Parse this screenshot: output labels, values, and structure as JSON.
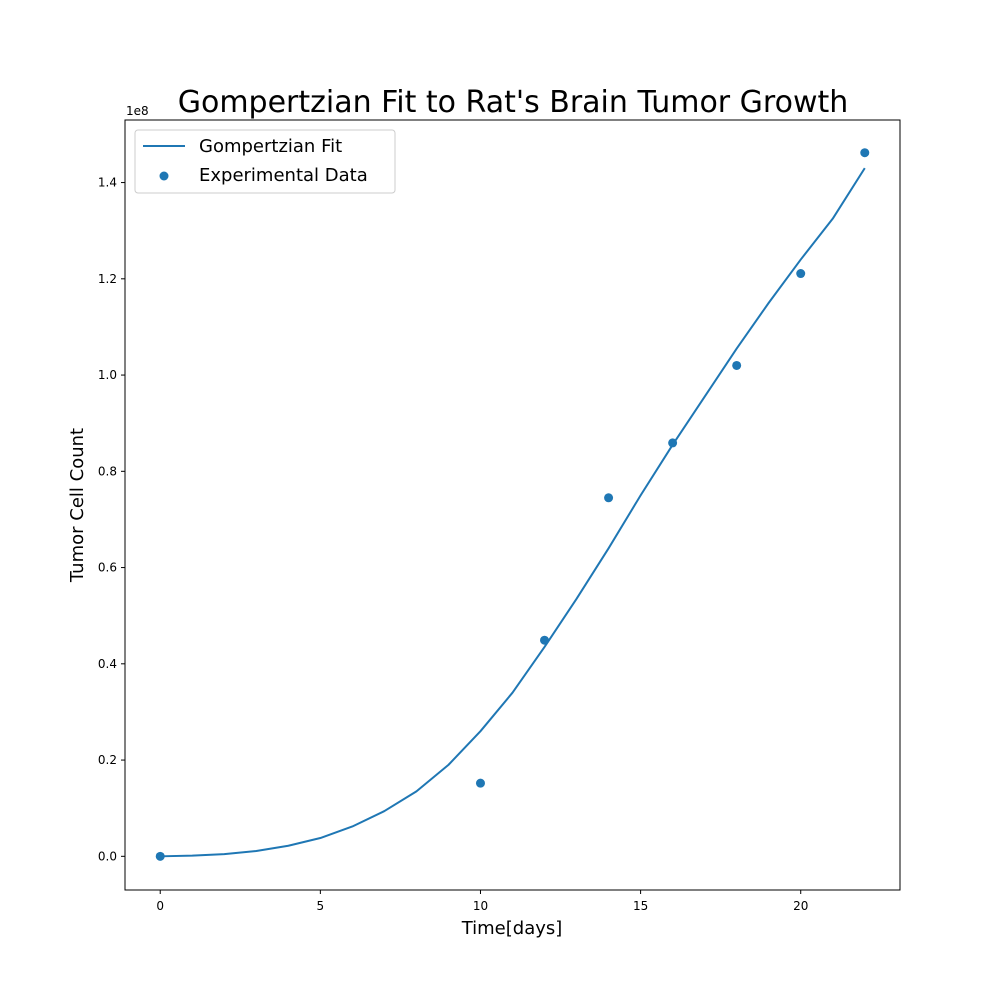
{
  "chart_data": {
    "type": "line",
    "title": "Gompertzian Fit to Rat's Brain Tumor Growth",
    "xlabel": "Time[days]",
    "ylabel": "Tumor Cell Count",
    "y_offset_label": "1e8",
    "xlim": [
      -1.1,
      23.1
    ],
    "ylim": [
      -0.07,
      1.53
    ],
    "x_ticks": [
      0,
      5,
      10,
      15,
      20
    ],
    "x_tick_labels": [
      "0",
      "5",
      "10",
      "15",
      "20"
    ],
    "y_ticks": [
      0.0,
      0.2,
      0.4,
      0.6,
      0.8,
      1.0,
      1.2,
      1.4
    ],
    "y_tick_labels": [
      "0.0",
      "0.2",
      "0.4",
      "0.6",
      "0.8",
      "1.0",
      "1.2",
      "1.4"
    ],
    "grid": false,
    "legend": {
      "position": "top-left",
      "entries": [
        "Gompertzian Fit",
        "Experimental Data"
      ]
    },
    "series": [
      {
        "name": "Gompertzian Fit",
        "kind": "line",
        "color": "#1f77b4",
        "x": [
          0,
          1,
          2,
          3,
          4,
          5,
          6,
          7,
          8,
          9,
          10,
          11,
          12,
          13,
          14,
          15,
          16,
          17,
          18,
          19,
          20,
          21,
          22
        ],
        "y": [
          0.0,
          0.0015,
          0.0045,
          0.011,
          0.022,
          0.038,
          0.062,
          0.094,
          0.135,
          0.19,
          0.26,
          0.34,
          0.435,
          0.535,
          0.64,
          0.75,
          0.855,
          0.955,
          1.055,
          1.15,
          1.24,
          1.325,
          1.43
        ]
      },
      {
        "name": "Experimental Data",
        "kind": "scatter",
        "color": "#1f77b4",
        "x": [
          0,
          10,
          12,
          14,
          16,
          18,
          20,
          22
        ],
        "y": [
          0.0,
          0.152,
          0.449,
          0.745,
          0.859,
          1.02,
          1.211,
          1.462
        ]
      }
    ]
  }
}
